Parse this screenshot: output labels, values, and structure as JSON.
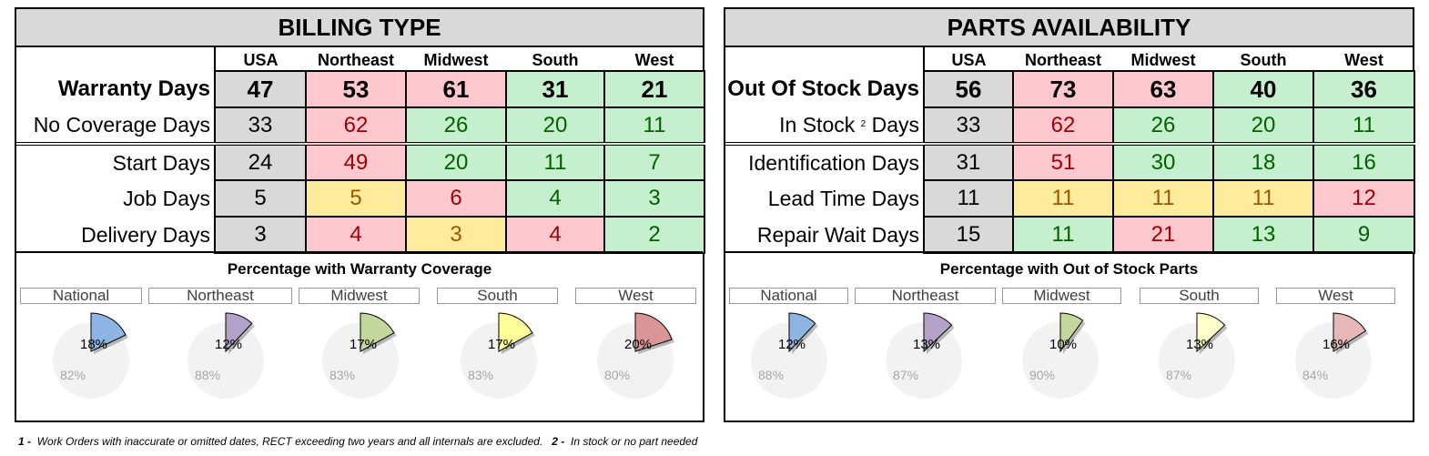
{
  "columns": [
    "USA",
    "Northeast",
    "Midwest",
    "South",
    "West"
  ],
  "billing": {
    "title": "BILLING TYPE",
    "rows": [
      {
        "label": "Warranty Days",
        "values": [
          "47",
          "53",
          "61",
          "31",
          "21"
        ],
        "colors": [
          "grey",
          "red",
          "red",
          "green",
          "green"
        ],
        "bold": true
      },
      {
        "label": "No Coverage Days",
        "values": [
          "33",
          "62",
          "26",
          "20",
          "11"
        ],
        "colors": [
          "grey",
          "red",
          "green",
          "green",
          "green"
        ]
      },
      {
        "label": "Start Days",
        "values": [
          "24",
          "49",
          "20",
          "11",
          "7"
        ],
        "colors": [
          "grey",
          "red",
          "green",
          "green",
          "green"
        ]
      },
      {
        "label": "Job Days",
        "values": [
          "5",
          "5",
          "6",
          "4",
          "3"
        ],
        "colors": [
          "grey",
          "yellow",
          "red",
          "green",
          "green"
        ]
      },
      {
        "label": "Delivery Days",
        "values": [
          "3",
          "4",
          "3",
          "4",
          "2"
        ],
        "colors": [
          "grey",
          "red",
          "yellow",
          "red",
          "green"
        ]
      }
    ],
    "pie_title": "Percentage with Warranty Coverage",
    "pies": [
      {
        "region": "National",
        "pct": 18,
        "label": "18%",
        "rest": "82%",
        "color": "#8eb4e3"
      },
      {
        "region": "Northeast",
        "pct": 12,
        "label": "12%",
        "rest": "88%",
        "color": "#b3a2c7"
      },
      {
        "region": "Midwest",
        "pct": 17,
        "label": "17%",
        "rest": "83%",
        "color": "#c3d69b"
      },
      {
        "region": "South",
        "pct": 17,
        "label": "17%",
        "rest": "83%",
        "color": "#ffff99"
      },
      {
        "region": "West",
        "pct": 20,
        "label": "20%",
        "rest": "80%",
        "color": "#d99694"
      }
    ]
  },
  "parts": {
    "title": "PARTS AVAILABILITY",
    "rows": [
      {
        "label": "Out Of Stock Days",
        "values": [
          "56",
          "73",
          "63",
          "40",
          "36"
        ],
        "colors": [
          "grey",
          "red",
          "red",
          "green",
          "green"
        ],
        "bold": true
      },
      {
        "label_pre": "In Stock",
        "label_sup": "2",
        "label_post": "Days",
        "values": [
          "33",
          "62",
          "26",
          "20",
          "11"
        ],
        "colors": [
          "grey",
          "red",
          "green",
          "green",
          "green"
        ]
      },
      {
        "label": "Identification Days",
        "values": [
          "31",
          "51",
          "30",
          "18",
          "16"
        ],
        "colors": [
          "grey",
          "red",
          "green",
          "green",
          "green"
        ]
      },
      {
        "label": "Lead Time Days",
        "values": [
          "11",
          "11",
          "11",
          "11",
          "12"
        ],
        "colors": [
          "grey",
          "yellow",
          "yellow",
          "yellow",
          "red"
        ]
      },
      {
        "label": "Repair Wait Days",
        "values": [
          "15",
          "11",
          "21",
          "13",
          "9"
        ],
        "colors": [
          "grey",
          "green",
          "red",
          "green",
          "green"
        ]
      }
    ],
    "pie_title": "Percentage with Out of Stock Parts",
    "pies": [
      {
        "region": "National",
        "pct": 12,
        "label": "12%",
        "rest": "88%",
        "color": "#8eb4e3"
      },
      {
        "region": "Northeast",
        "pct": 13,
        "label": "13%",
        "rest": "87%",
        "color": "#b3a2c7"
      },
      {
        "region": "Midwest",
        "pct": 10,
        "label": "10%",
        "rest": "90%",
        "color": "#c3d69b"
      },
      {
        "region": "South",
        "pct": 13,
        "label": "13%",
        "rest": "87%",
        "color": "#ffffcc"
      },
      {
        "region": "West",
        "pct": 16,
        "label": "16%",
        "rest": "84%",
        "color": "#e6b9b8"
      }
    ]
  },
  "footnote": {
    "n1": "1 -",
    "t1": "Work Orders with inaccurate or omitted dates, RECT exceeding two years and all internals are excluded.",
    "n2": "2 -",
    "t2": "In stock or no part needed"
  }
}
